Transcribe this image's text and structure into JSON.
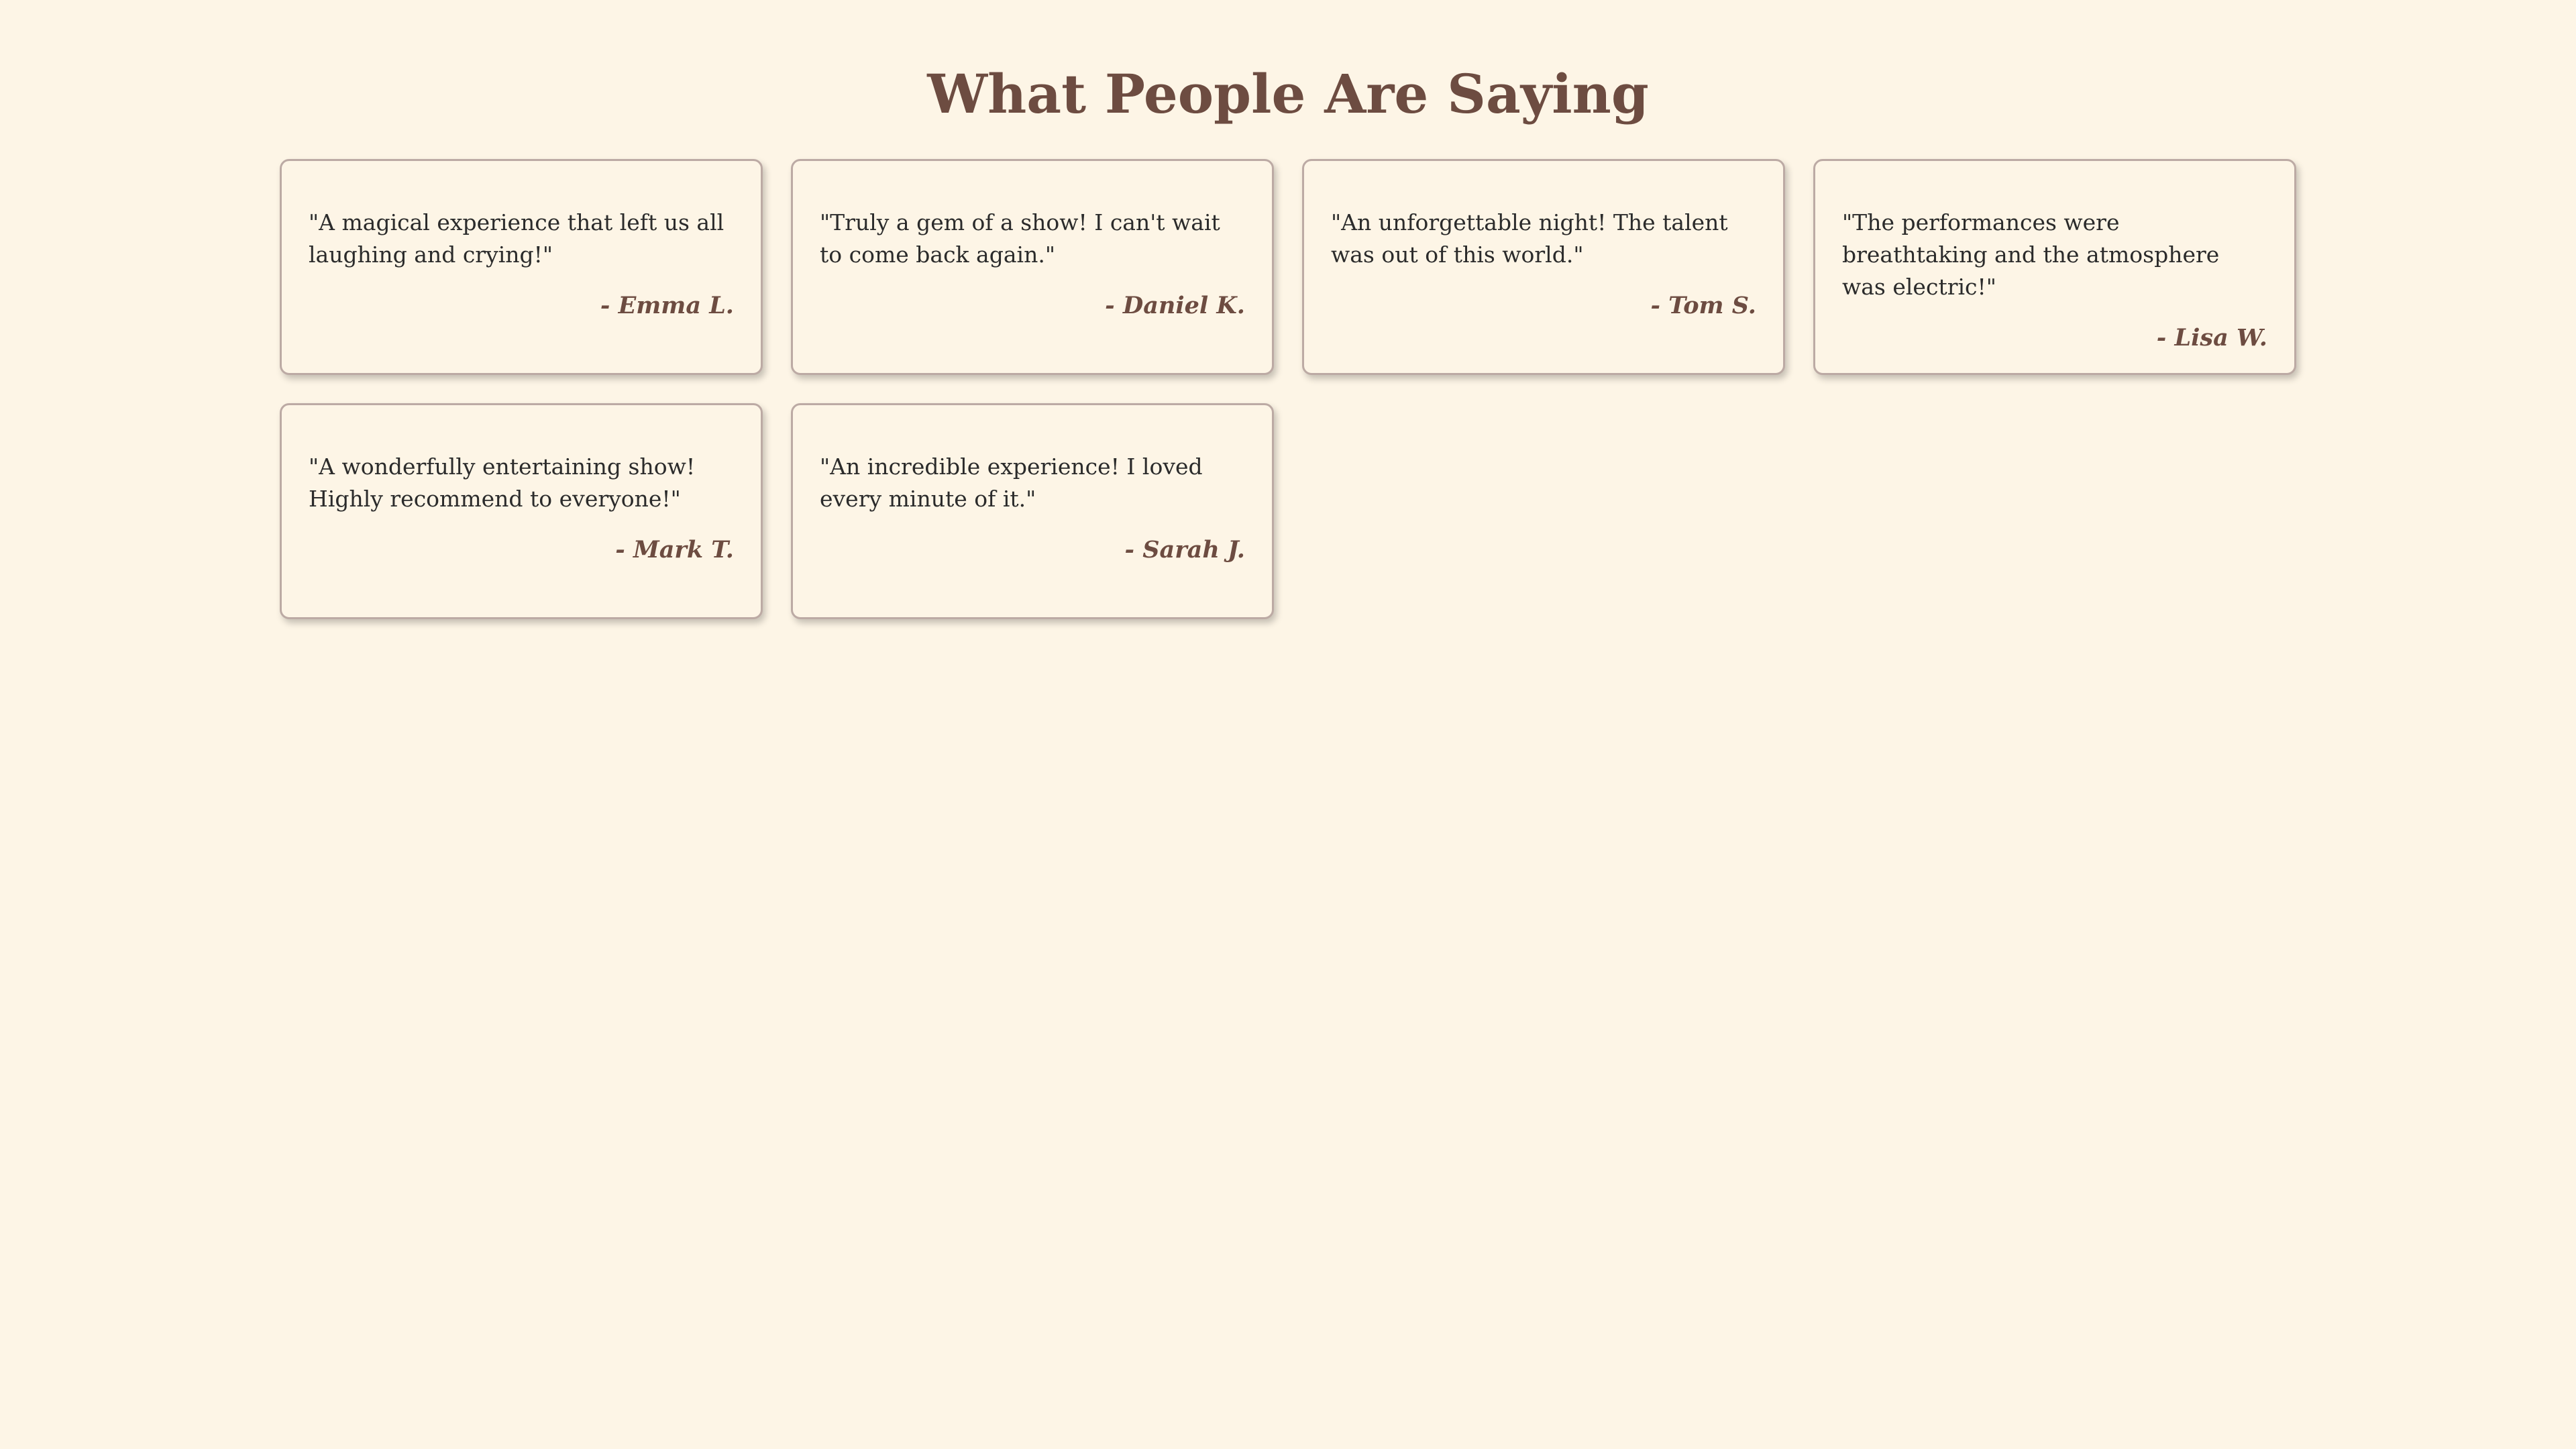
{
  "page": {
    "title": "What People Are Saying"
  },
  "colors": {
    "background": "#fdf5e6",
    "accent": "#6d4c41",
    "border": "#bcaaa4",
    "text": "#2b2b2b"
  },
  "testimonials": [
    {
      "quote": "\"A magical experience that left us all laughing and crying!\"",
      "author": "- Emma L."
    },
    {
      "quote": "\"Truly a gem of a show! I can't wait to come back again.\"",
      "author": "- Daniel K."
    },
    {
      "quote": "\"An unforgettable night! The talent was out of this world.\"",
      "author": "- Tom S."
    },
    {
      "quote": "\"The performances were breathtaking and the atmosphere was electric!\"",
      "author": "- Lisa W."
    },
    {
      "quote": "\"A wonderfully entertaining show! Highly recommend to everyone!\"",
      "author": "- Mark T."
    },
    {
      "quote": "\"An incredible experience! I loved every minute of it.\"",
      "author": "- Sarah J."
    }
  ]
}
